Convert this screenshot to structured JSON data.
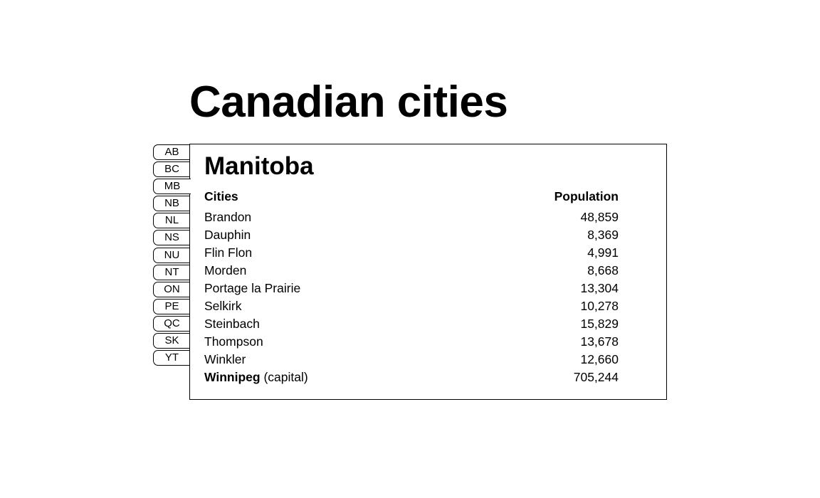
{
  "page": {
    "title": "Canadian cities"
  },
  "tabs": [
    {
      "label": "AB"
    },
    {
      "label": "BC"
    },
    {
      "label": "MB",
      "active": true
    },
    {
      "label": "NB"
    },
    {
      "label": "NL"
    },
    {
      "label": "NS"
    },
    {
      "label": "NU"
    },
    {
      "label": "NT"
    },
    {
      "label": "ON"
    },
    {
      "label": "PE"
    },
    {
      "label": "QC"
    },
    {
      "label": "SK"
    },
    {
      "label": "YT"
    }
  ],
  "panel": {
    "title": "Manitoba",
    "table": {
      "headers": {
        "city": "Cities",
        "population": "Population"
      },
      "rows": [
        {
          "city": "Brandon",
          "population": "48,859"
        },
        {
          "city": "Dauphin",
          "population": "8,369"
        },
        {
          "city": "Flin Flon",
          "population": "4,991"
        },
        {
          "city": "Morden",
          "population": "8,668"
        },
        {
          "city": "Portage la Prairie",
          "population": "13,304"
        },
        {
          "city": "Selkirk",
          "population": "10,278"
        },
        {
          "city": "Steinbach",
          "population": "15,829"
        },
        {
          "city": "Thompson",
          "population": "13,678"
        },
        {
          "city": "Winkler",
          "population": "12,660"
        },
        {
          "city": "Winnipeg",
          "suffix": " (capital)",
          "population": "705,244"
        }
      ]
    }
  }
}
